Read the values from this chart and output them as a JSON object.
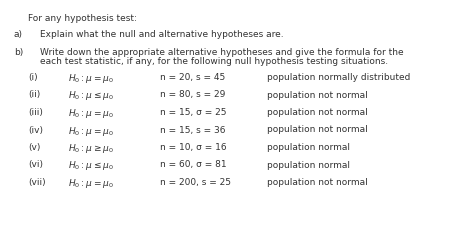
{
  "background_color": "#ffffff",
  "title_line": "For any hypothesis test:",
  "part_a_label": "a)",
  "part_a_text": "Explain what the null and alternative hypotheses are.",
  "part_b_label": "b)",
  "part_b_line1": "Write down the appropriate alternative hypotheses and give the formula for the",
  "part_b_line2": "each test statistic, if any, for the following null hypothesis testing situations.",
  "rows": [
    {
      "label": "(i)",
      "hyp": "$H_0: \\mu = \\mu_0$",
      "params": "n = 20, s = 45",
      "note": "population normally distributed"
    },
    {
      "label": "(ii)",
      "hyp": "$H_0: \\mu \\leq \\mu_0$",
      "params": "n = 80, s = 29",
      "note": "population not normal"
    },
    {
      "label": "(iii)",
      "hyp": "$H_0: \\mu = \\mu_0$",
      "params": "n = 15, σ = 25",
      "note": "population not normal"
    },
    {
      "label": "(iv)",
      "hyp": "$H_0: \\mu = \\mu_0$",
      "params": "n = 15, s = 36",
      "note": "population not normal"
    },
    {
      "label": "(v)",
      "hyp": "$H_0: \\mu \\geq \\mu_0$",
      "params": "n = 10, σ = 16",
      "note": "population normal"
    },
    {
      "label": "(vi)",
      "hyp": "$H_0: \\mu \\leq \\mu_0$",
      "params": "n = 60, σ = 81",
      "note": "population normal"
    },
    {
      "label": "(vii)",
      "hyp": "$H_0: \\mu = \\mu_0$",
      "params": "n = 200, s = 25",
      "note": "population not normal"
    }
  ],
  "font_size": 6.5,
  "text_color": "#333333"
}
